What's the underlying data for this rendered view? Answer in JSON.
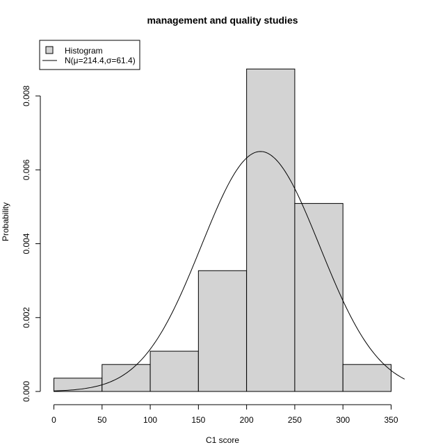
{
  "chart_data": {
    "type": "bar",
    "title": "management and quality studies",
    "xlabel": "C1 score",
    "ylabel": "Probability",
    "xlim": [
      0,
      350
    ],
    "ylim": [
      0,
      0.008
    ],
    "x_ticks": [
      0,
      50,
      100,
      150,
      200,
      250,
      300,
      350
    ],
    "y_ticks": [
      "0.000",
      "0.002",
      "0.004",
      "0.006",
      "0.008"
    ],
    "bins": [
      {
        "start": 0,
        "end": 50,
        "value": 0.00036
      },
      {
        "start": 50,
        "end": 100,
        "value": 0.00073
      },
      {
        "start": 100,
        "end": 150,
        "value": 0.00109
      },
      {
        "start": 150,
        "end": 200,
        "value": 0.00327
      },
      {
        "start": 200,
        "end": 250,
        "value": 0.00873
      },
      {
        "start": 250,
        "end": 300,
        "value": 0.00509
      },
      {
        "start": 300,
        "end": 350,
        "value": 0.00073
      }
    ],
    "normal_curve": {
      "mean": 214.4,
      "sd": 61.4,
      "x_range": [
        0,
        364
      ]
    },
    "legend": {
      "position": "top-left",
      "entries": [
        {
          "label": "Histogram",
          "type": "box"
        },
        {
          "label": "N(μ=214.4,σ=61.4)",
          "type": "line"
        }
      ]
    },
    "bar_fill": "#d3d3d3",
    "line_color": "#000000"
  }
}
